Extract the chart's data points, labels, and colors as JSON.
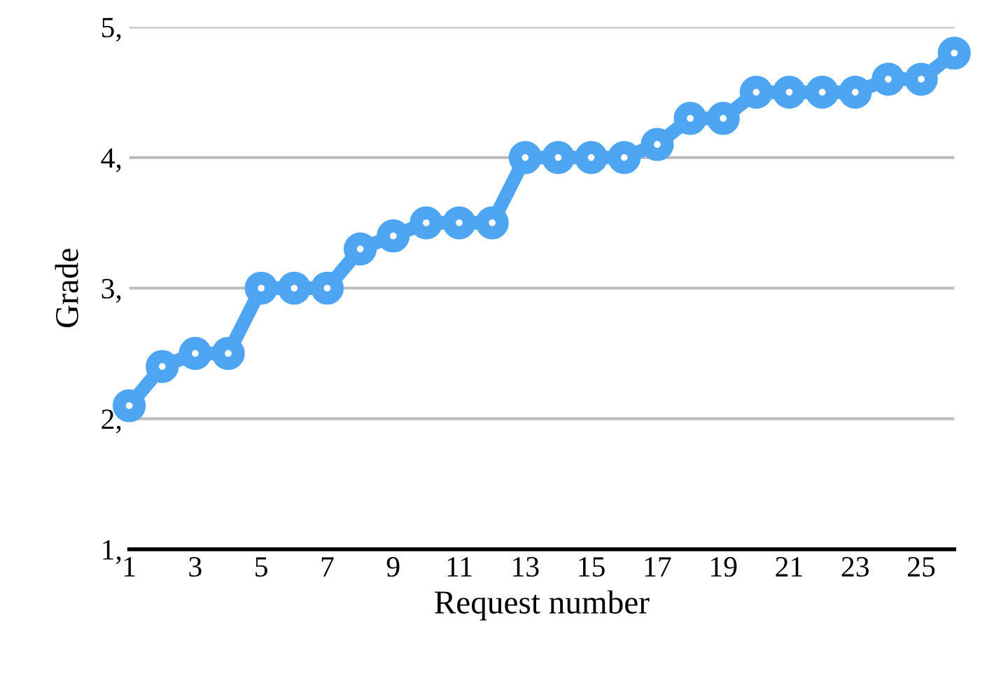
{
  "chart_data": {
    "type": "line",
    "xlabel": "Request number",
    "ylabel": "Grade",
    "categories": [
      "1",
      null,
      "3",
      null,
      "5",
      null,
      "7",
      null,
      "9",
      null,
      "11",
      null,
      "13",
      null,
      "15",
      null,
      "17",
      null,
      "19",
      null,
      "21",
      null,
      "23",
      null,
      "25",
      null
    ],
    "series": [
      {
        "color": "#4ea5f2",
        "values": [
          2.1,
          2.4,
          2.5,
          2.5,
          3.0,
          3.0,
          3.0,
          3.3,
          3.4,
          3.5,
          3.5,
          3.5,
          4.0,
          4.0,
          4.0,
          4.0,
          4.1,
          4.3,
          4.3,
          4.5,
          4.5,
          4.5,
          4.5,
          4.6,
          4.6,
          4.8
        ]
      }
    ],
    "ylim": [
      1,
      5
    ],
    "yticks": [
      {
        "value": 1,
        "label": "1,"
      },
      {
        "value": 2,
        "label": "2,"
      },
      {
        "value": 3,
        "label": "3,"
      },
      {
        "value": 4,
        "label": "4,"
      },
      {
        "value": 5,
        "label": "5,"
      }
    ],
    "grid": "y",
    "marker": "circle",
    "line_style": "solid",
    "legend": false
  }
}
